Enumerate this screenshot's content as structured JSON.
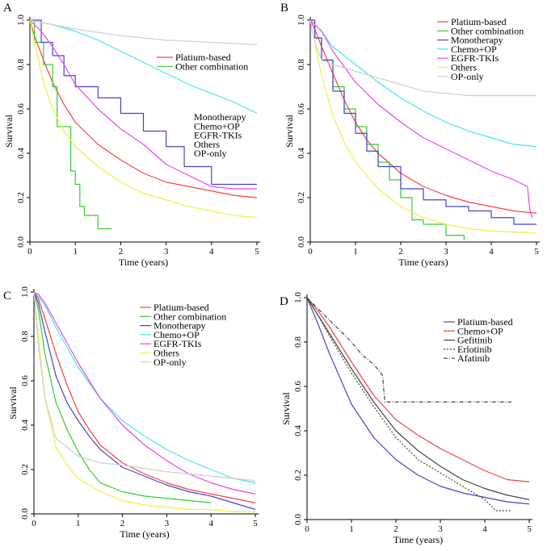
{
  "chart_data": [
    {
      "panel_label": "A",
      "type": "line",
      "xlabel": "Time (years)",
      "ylabel": "Survival",
      "xlim": [
        0,
        5
      ],
      "ylim": [
        0,
        1
      ],
      "xticks": [
        "0",
        "1",
        "2",
        "3",
        "4",
        "5"
      ],
      "yticks": [
        "0.0",
        "0.2",
        "0.4",
        "0.6",
        "0.8",
        "1.0"
      ],
      "legend_placement": "split right",
      "series": [
        {
          "name": "Platium-based",
          "color": "#ff4040",
          "style": "solid",
          "x": [
            0,
            0.1,
            0.3,
            0.5,
            0.75,
            1,
            1.5,
            2,
            2.5,
            3,
            3.5,
            4,
            4.5,
            5
          ],
          "y": [
            1,
            0.93,
            0.82,
            0.72,
            0.62,
            0.54,
            0.44,
            0.37,
            0.31,
            0.27,
            0.25,
            0.23,
            0.21,
            0.2
          ]
        },
        {
          "name": "Other combination",
          "color": "#33cc33",
          "style": "step",
          "x": [
            0,
            0.1,
            0.3,
            0.5,
            0.6,
            0.8,
            0.9,
            1.0,
            1.1,
            1.2,
            1.3,
            1.5,
            1.8
          ],
          "y": [
            1,
            0.9,
            0.8,
            0.7,
            0.52,
            0.52,
            0.32,
            0.26,
            0.16,
            0.12,
            0.12,
            0.06,
            0.06
          ]
        },
        {
          "name": "Monotherapy",
          "color": "#4444cc",
          "style": "step",
          "x": [
            0,
            0.25,
            0.5,
            0.75,
            1,
            1.5,
            2,
            2.5,
            3,
            3.4,
            3.7,
            4,
            4.5,
            5
          ],
          "y": [
            1,
            0.9,
            0.84,
            0.75,
            0.7,
            0.65,
            0.58,
            0.5,
            0.43,
            0.34,
            0.34,
            0.26,
            0.26,
            0.26
          ]
        },
        {
          "name": "Chemo+OP",
          "color": "#44e5f0",
          "style": "solid",
          "x": [
            0,
            0.5,
            1,
            1.5,
            2,
            2.5,
            3,
            3.5,
            4,
            4.5,
            5
          ],
          "y": [
            1,
            0.98,
            0.95,
            0.91,
            0.86,
            0.81,
            0.76,
            0.71,
            0.67,
            0.63,
            0.58
          ]
        },
        {
          "name": "EGFR-TKIs",
          "color": "#ee44ee",
          "style": "solid",
          "x": [
            0,
            0.25,
            0.5,
            0.75,
            1,
            1.5,
            2,
            2.5,
            3,
            3.5,
            4,
            4.5,
            5
          ],
          "y": [
            1,
            0.95,
            0.88,
            0.8,
            0.71,
            0.6,
            0.51,
            0.44,
            0.35,
            0.3,
            0.25,
            0.24,
            0.24
          ]
        },
        {
          "name": "Others",
          "color": "#f0f040",
          "style": "solid",
          "x": [
            0,
            0.1,
            0.3,
            0.5,
            0.75,
            1,
            1.5,
            2,
            2.5,
            3,
            3.5,
            4,
            4.5,
            5
          ],
          "y": [
            1,
            0.9,
            0.72,
            0.6,
            0.5,
            0.43,
            0.34,
            0.27,
            0.22,
            0.19,
            0.16,
            0.14,
            0.12,
            0.11
          ]
        },
        {
          "name": "OP-only",
          "color": "#cfcfcf",
          "style": "solid",
          "x": [
            0,
            0.5,
            1,
            2,
            3,
            4,
            5
          ],
          "y": [
            1,
            0.98,
            0.96,
            0.93,
            0.91,
            0.9,
            0.89
          ]
        }
      ]
    },
    {
      "panel_label": "B",
      "type": "line",
      "xlabel": "Time (years)",
      "ylabel": "Survival",
      "xlim": [
        0,
        5
      ],
      "ylim": [
        0,
        1
      ],
      "xticks": [
        "0",
        "1",
        "2",
        "3",
        "4",
        "5"
      ],
      "yticks": [
        "0.0",
        "0.2",
        "0.4",
        "0.6",
        "0.8",
        "1.0"
      ],
      "legend_placement": "top-right",
      "series": [
        {
          "name": "Platium-based",
          "color": "#ff4040",
          "style": "solid",
          "x": [
            0,
            0.1,
            0.25,
            0.5,
            0.75,
            1,
            1.25,
            1.5,
            2,
            2.5,
            3,
            3.5,
            4,
            4.5,
            5
          ],
          "y": [
            1,
            0.96,
            0.88,
            0.76,
            0.64,
            0.54,
            0.46,
            0.4,
            0.31,
            0.25,
            0.21,
            0.18,
            0.16,
            0.14,
            0.13
          ]
        },
        {
          "name": "Other combination",
          "color": "#33cc33",
          "style": "step",
          "x": [
            0,
            0.1,
            0.25,
            0.5,
            0.75,
            1,
            1.25,
            1.5,
            1.75,
            2,
            2.25,
            2.5,
            3,
            3.4
          ],
          "y": [
            1,
            0.92,
            0.82,
            0.7,
            0.6,
            0.52,
            0.44,
            0.36,
            0.28,
            0.2,
            0.1,
            0.08,
            0.03,
            0.01
          ]
        },
        {
          "name": "Monotherapy",
          "color": "#4444cc",
          "style": "step",
          "x": [
            0,
            0.1,
            0.25,
            0.5,
            0.75,
            1,
            1.25,
            1.5,
            2,
            2.5,
            3,
            3.5,
            4,
            4.5,
            5
          ],
          "y": [
            1,
            0.92,
            0.82,
            0.68,
            0.58,
            0.49,
            0.41,
            0.34,
            0.24,
            0.19,
            0.16,
            0.14,
            0.11,
            0.08,
            0.08
          ]
        },
        {
          "name": "Chemo+OP",
          "color": "#44e5f0",
          "style": "solid",
          "x": [
            0,
            0.25,
            0.5,
            1,
            1.5,
            2,
            2.5,
            3,
            3.5,
            4,
            4.5,
            5
          ],
          "y": [
            1,
            0.95,
            0.88,
            0.8,
            0.72,
            0.65,
            0.59,
            0.54,
            0.5,
            0.47,
            0.44,
            0.43
          ]
        },
        {
          "name": "EGFR-TKIs",
          "color": "#ee44ee",
          "style": "solid",
          "x": [
            0,
            0.25,
            0.5,
            1,
            1.5,
            2,
            2.5,
            3,
            3.5,
            4,
            4.5,
            4.8,
            4.85,
            4.9
          ],
          "y": [
            1,
            0.95,
            0.86,
            0.72,
            0.62,
            0.54,
            0.47,
            0.42,
            0.37,
            0.32,
            0.28,
            0.25,
            0.15,
            0.11
          ]
        },
        {
          "name": "Others",
          "color": "#f0f040",
          "style": "solid",
          "x": [
            0,
            0.1,
            0.25,
            0.5,
            0.75,
            1,
            1.5,
            2,
            2.5,
            3,
            3.5,
            4,
            4.5,
            5
          ],
          "y": [
            1,
            0.9,
            0.75,
            0.57,
            0.45,
            0.36,
            0.24,
            0.16,
            0.11,
            0.08,
            0.06,
            0.05,
            0.045,
            0.04
          ]
        },
        {
          "name": "OP-only",
          "color": "#cfcfcf",
          "style": "solid",
          "x": [
            0,
            0.1,
            0.25,
            0.5,
            1,
            1.5,
            2,
            2.5,
            3,
            3.5,
            4,
            4.5,
            5
          ],
          "y": [
            1,
            0.9,
            0.82,
            0.8,
            0.77,
            0.74,
            0.71,
            0.68,
            0.67,
            0.66,
            0.66,
            0.66,
            0.66
          ]
        }
      ],
      "legend_entries": [
        "Platium-based",
        "Other combination",
        "Monotherapy",
        "Chemo+OP",
        "EGFR-TKIs",
        "Others",
        "OP-only"
      ]
    },
    {
      "panel_label": "C",
      "type": "line",
      "xlabel": "Time (years)",
      "ylabel": "Survival",
      "xlim": [
        0,
        5
      ],
      "ylim": [
        0,
        1
      ],
      "xticks": [
        "0",
        "1",
        "2",
        "3",
        "4",
        "5"
      ],
      "yticks": [
        "0.0",
        "0.2",
        "0.4",
        "0.6",
        "0.8",
        "1.0"
      ],
      "legend_placement": "top-right",
      "series": [
        {
          "name": "Platium-based",
          "color": "#ff4040",
          "style": "solid",
          "x": [
            0,
            0.1,
            0.25,
            0.5,
            0.75,
            1,
            1.25,
            1.5,
            2,
            2.5,
            3,
            3.5,
            4,
            4.5,
            5
          ],
          "y": [
            1,
            0.97,
            0.88,
            0.72,
            0.58,
            0.46,
            0.38,
            0.31,
            0.23,
            0.18,
            0.14,
            0.11,
            0.09,
            0.07,
            0.05
          ]
        },
        {
          "name": "Other combination",
          "color": "#33cc33",
          "style": "solid",
          "x": [
            0,
            0.1,
            0.25,
            0.5,
            0.75,
            1,
            1.25,
            1.5,
            2,
            2.5,
            3,
            3.5,
            4
          ],
          "y": [
            1,
            0.92,
            0.72,
            0.5,
            0.38,
            0.28,
            0.2,
            0.14,
            0.1,
            0.08,
            0.07,
            0.06,
            0.05
          ]
        },
        {
          "name": "Monotherapy",
          "color": "#4444cc",
          "style": "solid",
          "x": [
            0,
            0.1,
            0.25,
            0.5,
            0.75,
            1,
            1.25,
            1.5,
            2,
            2.5,
            3,
            3.5,
            4,
            4.5,
            5
          ],
          "y": [
            1,
            0.95,
            0.82,
            0.62,
            0.5,
            0.42,
            0.35,
            0.29,
            0.21,
            0.17,
            0.13,
            0.1,
            0.08,
            0.05,
            0.02
          ]
        },
        {
          "name": "Chemo+OP",
          "color": "#44e5f0",
          "style": "solid",
          "x": [
            0,
            0.1,
            0.25,
            0.5,
            1,
            1.5,
            2,
            2.5,
            3,
            3.5,
            4,
            4.5,
            5
          ],
          "y": [
            1,
            0.98,
            0.94,
            0.84,
            0.66,
            0.52,
            0.42,
            0.35,
            0.29,
            0.24,
            0.2,
            0.16,
            0.14
          ]
        },
        {
          "name": "EGFR-TKIs",
          "color": "#ee44ee",
          "style": "solid",
          "x": [
            0,
            0.1,
            0.25,
            0.5,
            1,
            1.5,
            2,
            2.5,
            3,
            3.5,
            4,
            4.5,
            5
          ],
          "y": [
            1,
            0.99,
            0.95,
            0.86,
            0.68,
            0.52,
            0.4,
            0.31,
            0.24,
            0.18,
            0.14,
            0.11,
            0.09
          ]
        },
        {
          "name": "Others",
          "color": "#f0f040",
          "style": "solid",
          "x": [
            0,
            0.1,
            0.25,
            0.5,
            0.75,
            1,
            1.5,
            2,
            2.5,
            3,
            3.5,
            4,
            4.5,
            5
          ],
          "y": [
            1,
            0.8,
            0.52,
            0.3,
            0.22,
            0.16,
            0.1,
            0.06,
            0.04,
            0.03,
            0.02,
            0.02,
            0.01,
            0.01
          ]
        },
        {
          "name": "OP-only",
          "color": "#cfcfcf",
          "style": "solid",
          "x": [
            0,
            0.1,
            0.25,
            0.5,
            1,
            1.5,
            2,
            3,
            4,
            5
          ],
          "y": [
            1,
            0.76,
            0.52,
            0.34,
            0.26,
            0.23,
            0.22,
            0.19,
            0.17,
            0.15
          ]
        }
      ],
      "legend_entries": [
        "Platium-based",
        "Other combination",
        "Monotherapy",
        "Chemo+OP",
        "EGFR-TKIs",
        "Others",
        "OP-only"
      ]
    },
    {
      "panel_label": "D",
      "type": "line",
      "xlabel": "Time (years)",
      "ylabel": "Survival",
      "xlim": [
        0,
        5
      ],
      "ylim": [
        0,
        1
      ],
      "xticks": [
        "0",
        "1",
        "2",
        "3",
        "4",
        "5"
      ],
      "yticks": [
        "0.0",
        "0.2",
        "0.4",
        "0.6",
        "0.8",
        "1.0"
      ],
      "legend_placement": "top-right",
      "series": [
        {
          "name": "Platium-based",
          "color": "#4444cc",
          "style": "solid",
          "x": [
            0,
            0.25,
            0.5,
            1,
            1.5,
            2,
            2.5,
            3,
            3.5,
            4,
            4.5,
            5
          ],
          "y": [
            1,
            0.88,
            0.75,
            0.52,
            0.37,
            0.27,
            0.2,
            0.15,
            0.12,
            0.1,
            0.08,
            0.07
          ]
        },
        {
          "name": "Chemo+OP",
          "color": "#ee4444",
          "style": "solid",
          "x": [
            0,
            0.25,
            0.5,
            1,
            1.5,
            2,
            2.5,
            3,
            3.5,
            4,
            4.5,
            5
          ],
          "y": [
            1,
            0.94,
            0.87,
            0.71,
            0.56,
            0.45,
            0.38,
            0.32,
            0.27,
            0.22,
            0.18,
            0.17
          ]
        },
        {
          "name": "Gefitinib",
          "color": "#444444",
          "style": "solid",
          "x": [
            0,
            0.25,
            0.5,
            1,
            1.5,
            2,
            2.5,
            3,
            3.5,
            4,
            4.5,
            5
          ],
          "y": [
            1,
            0.92,
            0.84,
            0.68,
            0.53,
            0.4,
            0.31,
            0.24,
            0.18,
            0.14,
            0.11,
            0.09
          ]
        },
        {
          "name": "Erlotinib",
          "color": "#444444",
          "style": "dotted",
          "x": [
            0,
            0.25,
            0.5,
            1,
            1.5,
            2,
            2.5,
            3,
            3.5,
            4,
            4.25,
            4.6
          ],
          "y": [
            1,
            0.92,
            0.83,
            0.66,
            0.51,
            0.37,
            0.27,
            0.21,
            0.15,
            0.09,
            0.04,
            0.04
          ]
        },
        {
          "name": "Afatinib",
          "color": "#444444",
          "style": "dashdot",
          "x": [
            0,
            0.5,
            1,
            1.25,
            1.5,
            1.7,
            1.75,
            2.5,
            3.5,
            4.6
          ],
          "y": [
            1,
            0.9,
            0.8,
            0.74,
            0.7,
            0.65,
            0.53,
            0.53,
            0.53,
            0.53
          ]
        }
      ],
      "legend_entries": [
        "Platium-based",
        "Chemo+OP",
        "Gefitinib",
        "Erlotinib",
        "Afatinib"
      ]
    }
  ]
}
